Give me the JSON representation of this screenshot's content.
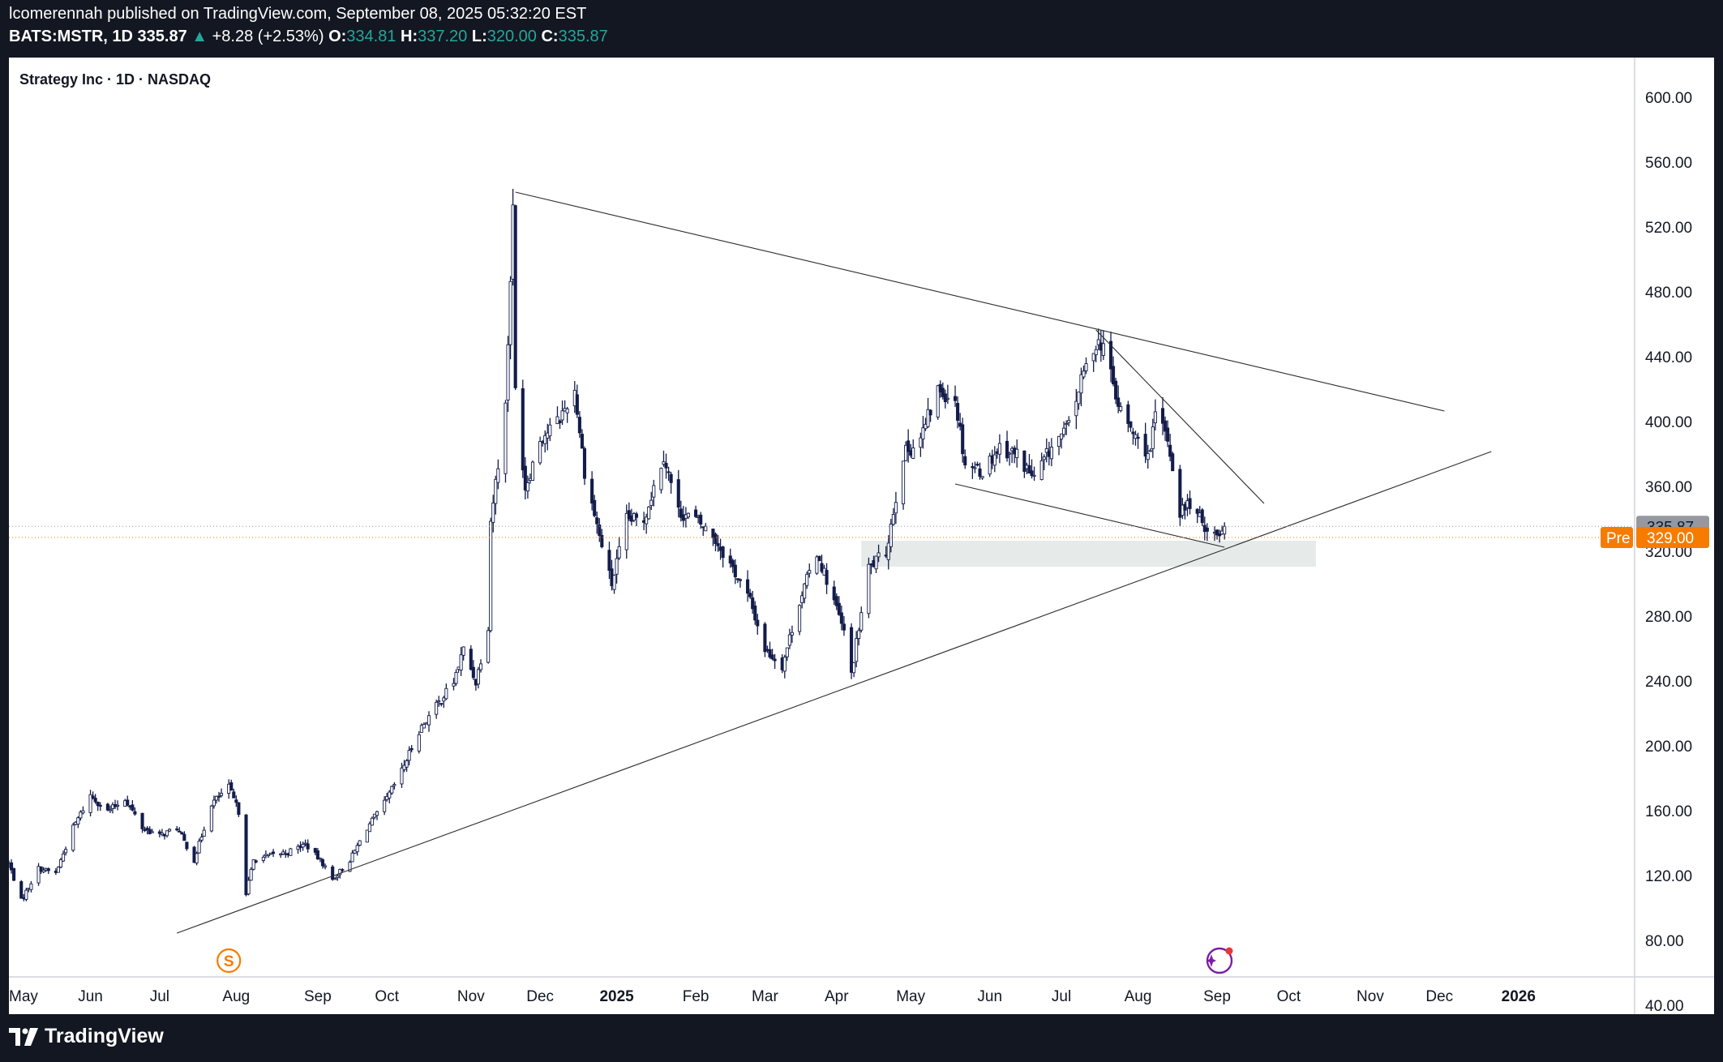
{
  "header": {
    "line1": "lcomerennah published on TradingView.com, September 08, 2025 05:32:20 EST",
    "symbol": "BATS:MSTR, 1D",
    "last": "335.87",
    "change": "+8.28 (+2.53%)",
    "o_label": "O:",
    "o_value": "334.81",
    "h_label": "H:",
    "h_value": "337.20",
    "l_label": "L:",
    "l_value": "320.00",
    "c_label": "C:",
    "c_value": "335.87"
  },
  "footer": {
    "brand": "TradingView"
  },
  "colors": {
    "background": "#131722",
    "plot": "#ffffff",
    "candle": "#131c4a",
    "accent": "#f57c00",
    "lastPrice": "#9598a1",
    "zone": "#e6ebea"
  },
  "chart_data": {
    "type": "candlestick",
    "title": "Strategy Inc · 1D · NASDAQ",
    "ylim": [
      35,
      625
    ],
    "y_ticks": [
      "600.00",
      "560.00",
      "520.00",
      "480.00",
      "440.00",
      "400.00",
      "360.00",
      "320.00",
      "280.00",
      "240.00",
      "200.00",
      "160.00",
      "120.00",
      "80.00",
      "40.00"
    ],
    "x_range": [
      "2024-05-01",
      "2026-02-18"
    ],
    "x_ticks": [
      {
        "label": "May",
        "date": "2024-05-01",
        "bold": false
      },
      {
        "label": "Jun",
        "date": "2024-06-03",
        "bold": false
      },
      {
        "label": "Jul",
        "date": "2024-07-01",
        "bold": false
      },
      {
        "label": "Aug",
        "date": "2024-08-01",
        "bold": false
      },
      {
        "label": "Sep",
        "date": "2024-09-03",
        "bold": false
      },
      {
        "label": "Oct",
        "date": "2024-10-01",
        "bold": false
      },
      {
        "label": "Nov",
        "date": "2024-11-04",
        "bold": false
      },
      {
        "label": "Dec",
        "date": "2024-12-02",
        "bold": false
      },
      {
        "label": "2025",
        "date": "2025-01-02",
        "bold": true
      },
      {
        "label": "Feb",
        "date": "2025-02-03",
        "bold": false
      },
      {
        "label": "Mar",
        "date": "2025-03-03",
        "bold": false
      },
      {
        "label": "Apr",
        "date": "2025-04-01",
        "bold": false
      },
      {
        "label": "May",
        "date": "2025-05-01",
        "bold": false
      },
      {
        "label": "Jun",
        "date": "2025-06-02",
        "bold": false
      },
      {
        "label": "Jul",
        "date": "2025-07-01",
        "bold": false
      },
      {
        "label": "Aug",
        "date": "2025-08-01",
        "bold": false
      },
      {
        "label": "Sep",
        "date": "2025-09-02",
        "bold": false
      },
      {
        "label": "Oct",
        "date": "2025-10-01",
        "bold": false
      },
      {
        "label": "Nov",
        "date": "2025-11-03",
        "bold": false
      },
      {
        "label": "Dec",
        "date": "2025-12-01",
        "bold": false
      },
      {
        "label": "2026",
        "date": "2026-01-02",
        "bold": true
      }
    ],
    "anchors": [
      [
        "2024-05-01",
        128
      ],
      [
        "2024-05-06",
        105
      ],
      [
        "2024-05-13",
        125
      ],
      [
        "2024-05-20",
        122
      ],
      [
        "2024-05-27",
        150
      ],
      [
        "2024-06-03",
        170
      ],
      [
        "2024-06-10",
        160
      ],
      [
        "2024-06-17",
        168
      ],
      [
        "2024-06-24",
        150
      ],
      [
        "2024-07-01",
        145
      ],
      [
        "2024-07-08",
        150
      ],
      [
        "2024-07-15",
        130
      ],
      [
        "2024-07-22",
        165
      ],
      [
        "2024-07-29",
        175
      ],
      [
        "2024-08-02",
        160
      ],
      [
        "2024-08-05",
        110
      ],
      [
        "2024-08-08",
        130
      ],
      [
        "2024-08-15",
        133
      ],
      [
        "2024-08-22",
        135
      ],
      [
        "2024-08-29",
        140
      ],
      [
        "2024-09-05",
        128
      ],
      [
        "2024-09-09",
        118
      ],
      [
        "2024-09-16",
        130
      ],
      [
        "2024-09-23",
        150
      ],
      [
        "2024-09-30",
        165
      ],
      [
        "2024-10-07",
        185
      ],
      [
        "2024-10-14",
        210
      ],
      [
        "2024-10-21",
        225
      ],
      [
        "2024-10-28",
        240
      ],
      [
        "2024-11-01",
        260
      ],
      [
        "2024-11-06",
        240
      ],
      [
        "2024-11-11",
        275
      ],
      [
        "2024-11-12",
        340
      ],
      [
        "2024-11-18",
        410
      ],
      [
        "2024-11-21",
        530
      ],
      [
        "2024-11-22",
        420
      ],
      [
        "2024-11-26",
        360
      ],
      [
        "2024-12-02",
        390
      ],
      [
        "2024-12-09",
        400
      ],
      [
        "2024-12-16",
        420
      ],
      [
        "2024-12-20",
        370
      ],
      [
        "2024-12-26",
        330
      ],
      [
        "2024-12-31",
        300
      ],
      [
        "2025-01-06",
        340
      ],
      [
        "2025-01-13",
        340
      ],
      [
        "2025-01-21",
        380
      ],
      [
        "2025-01-27",
        345
      ],
      [
        "2025-02-03",
        340
      ],
      [
        "2025-02-10",
        330
      ],
      [
        "2025-02-18",
        310
      ],
      [
        "2025-02-25",
        290
      ],
      [
        "2025-03-03",
        260
      ],
      [
        "2025-03-10",
        250
      ],
      [
        "2025-03-17",
        290
      ],
      [
        "2025-03-24",
        320
      ],
      [
        "2025-03-31",
        290
      ],
      [
        "2025-04-04",
        270
      ],
      [
        "2025-04-07",
        245
      ],
      [
        "2025-04-14",
        310
      ],
      [
        "2025-04-21",
        320
      ],
      [
        "2025-04-28",
        380
      ],
      [
        "2025-05-05",
        390
      ],
      [
        "2025-05-12",
        420
      ],
      [
        "2025-05-19",
        415
      ],
      [
        "2025-05-23",
        375
      ],
      [
        "2025-05-30",
        370
      ],
      [
        "2025-06-06",
        385
      ],
      [
        "2025-06-13",
        380
      ],
      [
        "2025-06-20",
        365
      ],
      [
        "2025-06-27",
        385
      ],
      [
        "2025-07-03",
        395
      ],
      [
        "2025-07-10",
        430
      ],
      [
        "2025-07-15",
        450
      ],
      [
        "2025-07-18",
        448
      ],
      [
        "2025-07-24",
        410
      ],
      [
        "2025-07-31",
        390
      ],
      [
        "2025-08-06",
        380
      ],
      [
        "2025-08-08",
        405
      ],
      [
        "2025-08-13",
        390
      ],
      [
        "2025-08-18",
        345
      ],
      [
        "2025-08-22",
        350
      ],
      [
        "2025-08-26",
        340
      ],
      [
        "2025-08-29",
        335
      ],
      [
        "2025-09-02",
        330
      ],
      [
        "2025-09-05",
        335.87
      ]
    ],
    "trendlines": [
      {
        "from": [
          "2024-11-22",
          542
        ],
        "to": [
          "2025-12-03",
          407
        ]
      },
      {
        "from": [
          "2024-07-08",
          85
        ],
        "to": [
          "2025-12-22",
          382
        ]
      },
      {
        "from": [
          "2025-05-19",
          362
        ],
        "to": [
          "2025-09-05",
          323
        ]
      },
      {
        "from": [
          "2025-07-15",
          457
        ],
        "to": [
          "2025-09-21",
          350
        ]
      }
    ],
    "zone": {
      "from": "2025-04-11",
      "to": "2025-10-12",
      "low": 311,
      "high": 327
    },
    "last_price": "335.87",
    "pre_label": "Pre",
    "pre_price": "329.00",
    "markers": [
      {
        "date": "2024-07-29",
        "label": "S"
      },
      {
        "date": "2025-09-01",
        "label": "spark"
      }
    ]
  }
}
